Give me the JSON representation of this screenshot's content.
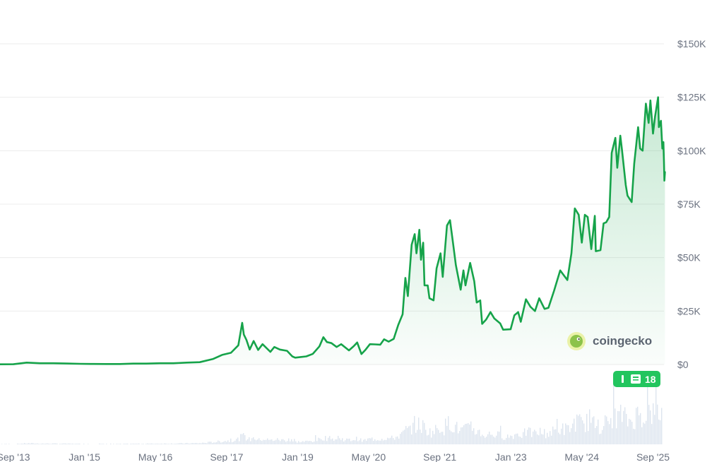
{
  "chart_data": {
    "type": "area",
    "y_axis": {
      "position": "right",
      "min": 0,
      "max": 150000,
      "ticks": [
        {
          "value": 0,
          "label": "$0"
        },
        {
          "value": 25000,
          "label": "$25K"
        },
        {
          "value": 50000,
          "label": "$50K"
        },
        {
          "value": 75000,
          "label": "$75K"
        },
        {
          "value": 100000,
          "label": "$100K"
        },
        {
          "value": 125000,
          "label": "$125K"
        },
        {
          "value": 150000,
          "label": "$150K"
        }
      ]
    },
    "x_axis": {
      "min": "2013-06-01",
      "max": "2025-11-15",
      "ticks": [
        {
          "date": "2013-09-01",
          "label": "Sep '13"
        },
        {
          "date": "2015-01-01",
          "label": "Jan '15"
        },
        {
          "date": "2016-05-01",
          "label": "May '16"
        },
        {
          "date": "2017-09-01",
          "label": "Sep '17"
        },
        {
          "date": "2019-01-01",
          "label": "Jan '19"
        },
        {
          "date": "2020-05-01",
          "label": "May '20"
        },
        {
          "date": "2021-09-01",
          "label": "Sep '21"
        },
        {
          "date": "2023-01-01",
          "label": "Jan '23"
        },
        {
          "date": "2024-05-01",
          "label": "May '24"
        },
        {
          "date": "2025-09-01",
          "label": "Sep '25"
        }
      ]
    },
    "grid": true,
    "legend": "none",
    "series": [
      {
        "color": "#16a34a",
        "points": [
          [
            "2013-06-01",
            100
          ],
          [
            "2013-09-01",
            130
          ],
          [
            "2013-12-01",
            900
          ],
          [
            "2014-03-01",
            600
          ],
          [
            "2014-06-01",
            600
          ],
          [
            "2014-09-01",
            450
          ],
          [
            "2014-12-01",
            330
          ],
          [
            "2015-03-01",
            260
          ],
          [
            "2015-06-01",
            240
          ],
          [
            "2015-09-01",
            240
          ],
          [
            "2015-12-01",
            430
          ],
          [
            "2016-03-01",
            420
          ],
          [
            "2016-06-01",
            600
          ],
          [
            "2016-09-01",
            610
          ],
          [
            "2016-12-01",
            900
          ],
          [
            "2017-03-01",
            1100
          ],
          [
            "2017-06-01",
            2600
          ],
          [
            "2017-08-01",
            4500
          ],
          [
            "2017-10-01",
            5500
          ],
          [
            "2017-11-20",
            9000
          ],
          [
            "2017-12-17",
            19500
          ],
          [
            "2017-12-28",
            14000
          ],
          [
            "2018-01-15",
            11500
          ],
          [
            "2018-02-06",
            7000
          ],
          [
            "2018-03-05",
            11000
          ],
          [
            "2018-04-05",
            6800
          ],
          [
            "2018-05-05",
            9500
          ],
          [
            "2018-06-28",
            5900
          ],
          [
            "2018-07-25",
            8200
          ],
          [
            "2018-09-01",
            7000
          ],
          [
            "2018-10-20",
            6400
          ],
          [
            "2018-11-25",
            3800
          ],
          [
            "2018-12-15",
            3200
          ],
          [
            "2019-01-20",
            3500
          ],
          [
            "2019-03-01",
            3800
          ],
          [
            "2019-04-15",
            5000
          ],
          [
            "2019-05-30",
            8500
          ],
          [
            "2019-06-26",
            12800
          ],
          [
            "2019-07-20",
            10500
          ],
          [
            "2019-08-20",
            10000
          ],
          [
            "2019-09-25",
            8200
          ],
          [
            "2019-10-26",
            9500
          ],
          [
            "2019-12-18",
            6600
          ],
          [
            "2020-01-20",
            8600
          ],
          [
            "2020-02-13",
            10300
          ],
          [
            "2020-03-13",
            4900
          ],
          [
            "2020-04-10",
            6900
          ],
          [
            "2020-05-10",
            9500
          ],
          [
            "2020-06-15",
            9400
          ],
          [
            "2020-07-20",
            9300
          ],
          [
            "2020-08-15",
            11800
          ],
          [
            "2020-09-15",
            10700
          ],
          [
            "2020-10-20",
            12000
          ],
          [
            "2020-11-20",
            18500
          ],
          [
            "2020-12-20",
            23500
          ],
          [
            "2021-01-08",
            40500
          ],
          [
            "2021-01-25",
            32000
          ],
          [
            "2021-02-20",
            56000
          ],
          [
            "2021-03-13",
            61000
          ],
          [
            "2021-03-25",
            52000
          ],
          [
            "2021-04-14",
            63000
          ],
          [
            "2021-04-25",
            49000
          ],
          [
            "2021-05-10",
            57000
          ],
          [
            "2021-05-19",
            37000
          ],
          [
            "2021-06-10",
            37000
          ],
          [
            "2021-06-22",
            31000
          ],
          [
            "2021-07-20",
            30000
          ],
          [
            "2021-08-10",
            45000
          ],
          [
            "2021-09-06",
            52000
          ],
          [
            "2021-09-21",
            41000
          ],
          [
            "2021-10-20",
            65000
          ],
          [
            "2021-11-10",
            67500
          ],
          [
            "2021-11-30",
            57000
          ],
          [
            "2021-12-20",
            46500
          ],
          [
            "2022-01-22",
            35000
          ],
          [
            "2022-02-10",
            44000
          ],
          [
            "2022-02-24",
            37000
          ],
          [
            "2022-03-28",
            47500
          ],
          [
            "2022-04-25",
            39000
          ],
          [
            "2022-05-12",
            29000
          ],
          [
            "2022-06-05",
            30000
          ],
          [
            "2022-06-18",
            19000
          ],
          [
            "2022-07-15",
            21000
          ],
          [
            "2022-08-14",
            24500
          ],
          [
            "2022-09-10",
            21500
          ],
          [
            "2022-10-20",
            19200
          ],
          [
            "2022-11-09",
            16300
          ],
          [
            "2022-12-30",
            16500
          ],
          [
            "2023-01-25",
            23000
          ],
          [
            "2023-02-20",
            24500
          ],
          [
            "2023-03-10",
            20000
          ],
          [
            "2023-04-14",
            30500
          ],
          [
            "2023-05-15",
            27000
          ],
          [
            "2023-06-15",
            25000
          ],
          [
            "2023-07-14",
            31000
          ],
          [
            "2023-08-20",
            26000
          ],
          [
            "2023-09-15",
            26500
          ],
          [
            "2023-10-24",
            34500
          ],
          [
            "2023-12-05",
            44000
          ],
          [
            "2024-01-23",
            39500
          ],
          [
            "2024-02-20",
            52000
          ],
          [
            "2024-03-14",
            73000
          ],
          [
            "2024-04-10",
            70000
          ],
          [
            "2024-05-01",
            57000
          ],
          [
            "2024-05-22",
            70000
          ],
          [
            "2024-06-10",
            69000
          ],
          [
            "2024-07-05",
            54000
          ],
          [
            "2024-07-29",
            69500
          ],
          [
            "2024-08-05",
            53000
          ],
          [
            "2024-09-06",
            53500
          ],
          [
            "2024-09-27",
            66000
          ],
          [
            "2024-10-15",
            66500
          ],
          [
            "2024-11-05",
            69000
          ],
          [
            "2024-11-22",
            99000
          ],
          [
            "2024-12-17",
            106000
          ],
          [
            "2024-12-30",
            92000
          ],
          [
            "2025-01-20",
            107000
          ],
          [
            "2025-02-01",
            100000
          ],
          [
            "2025-02-26",
            84000
          ],
          [
            "2025-03-10",
            79000
          ],
          [
            "2025-04-08",
            76000
          ],
          [
            "2025-04-25",
            94000
          ],
          [
            "2025-05-22",
            111000
          ],
          [
            "2025-06-05",
            101000
          ],
          [
            "2025-06-22",
            100000
          ],
          [
            "2025-07-14",
            122000
          ],
          [
            "2025-08-02",
            113000
          ],
          [
            "2025-08-14",
            123500
          ],
          [
            "2025-09-01",
            108000
          ],
          [
            "2025-09-15",
            116000
          ],
          [
            "2025-10-06",
            125000
          ],
          [
            "2025-10-11",
            111000
          ],
          [
            "2025-10-25",
            114000
          ],
          [
            "2025-11-04",
            101000
          ],
          [
            "2025-11-11",
            104000
          ],
          [
            "2025-11-15",
            95000
          ],
          [
            "2025-11-18",
            86000
          ],
          [
            "2025-11-22",
            90000
          ]
        ]
      }
    ],
    "volume_pane": {
      "color": "#dde5ef"
    }
  },
  "watermark": {
    "text": "coingecko",
    "icon": "gecko-logo-icon"
  },
  "news_badge": {
    "icon": "newspaper-icon",
    "count": "18",
    "color": "#22c55e"
  }
}
